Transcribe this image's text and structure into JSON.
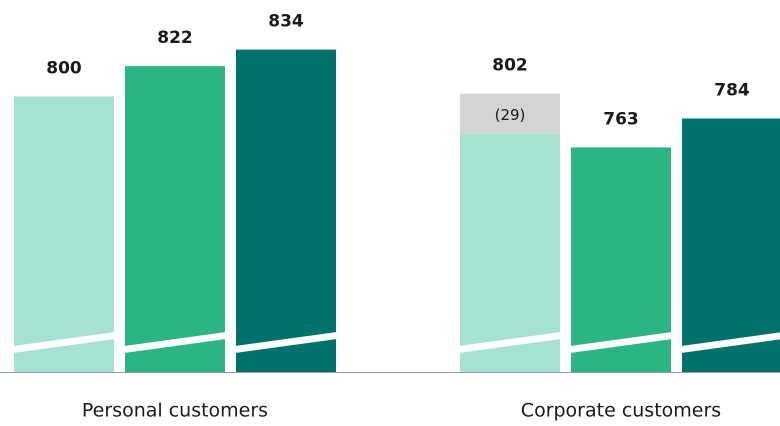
{
  "chart_data": {
    "type": "bar",
    "stacked": true,
    "axis_break": true,
    "categories": [
      "Personal customers",
      "Corporate customers"
    ],
    "series": [
      {
        "color": "#a5e2d3",
        "values": [
          800,
          773
        ]
      },
      {
        "color": "#2bb583",
        "values": [
          822,
          763
        ]
      },
      {
        "color": "#00716b",
        "values": [
          834,
          784
        ]
      },
      {
        "color": "#d4d4d4",
        "stack_on": 0,
        "values": [
          null,
          29
        ],
        "value_labels": [
          null,
          "(29)"
        ]
      }
    ],
    "totals": [
      [
        800,
        822,
        834
      ],
      [
        802,
        763,
        784
      ]
    ],
    "ylim": [
      600,
      870
    ]
  }
}
